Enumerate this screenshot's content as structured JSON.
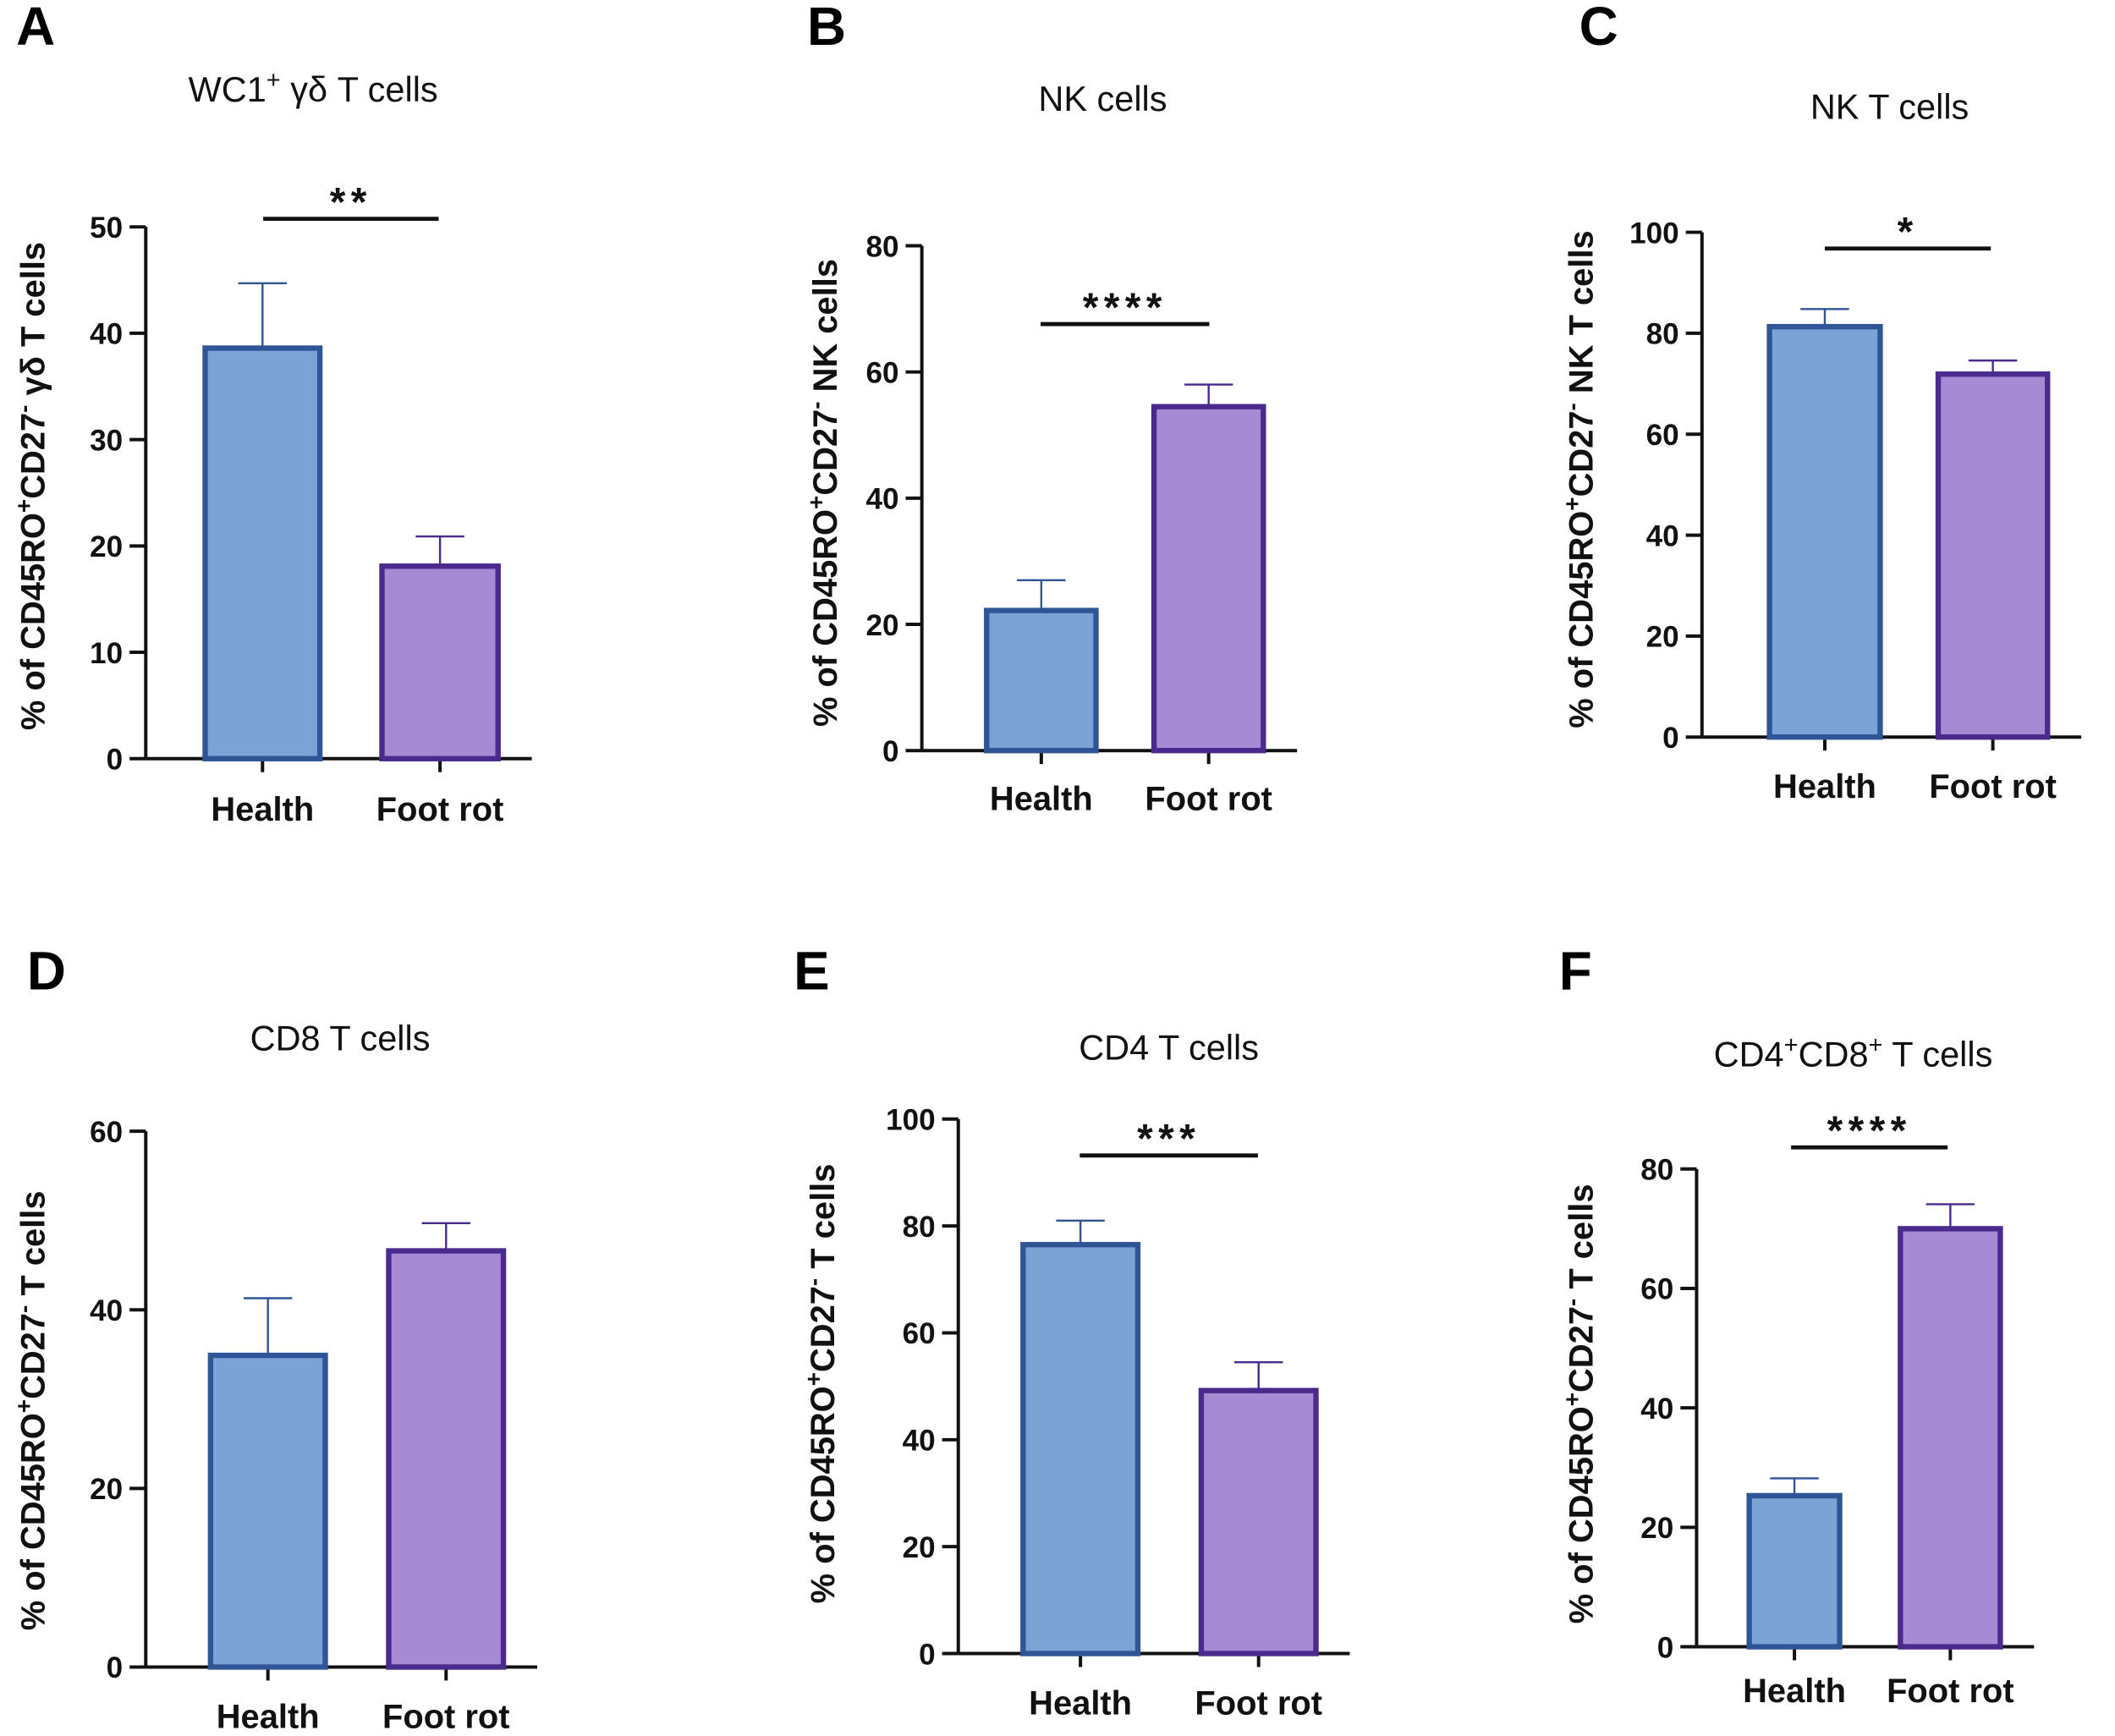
{
  "colors": {
    "health_fill": "#7ba3d6",
    "health_stroke": "#2f5597",
    "footrot_fill": "#a68bd4",
    "footrot_stroke": "#4a2a8c",
    "axis": "#111111"
  },
  "chart_data": [
    {
      "panel": "A",
      "type": "bar",
      "title": [
        {
          "t": "WC1"
        },
        {
          "t": "+",
          "sup": true
        },
        {
          "t": " γδ T cells"
        }
      ],
      "ylabel": [
        {
          "t": "% of CD45RO"
        },
        {
          "t": "+",
          "sup": true
        },
        {
          "t": "CD27"
        },
        {
          "t": "-",
          "sup": true
        },
        {
          "t": " γδ T cells"
        }
      ],
      "categories": [
        "Health",
        "Foot rot"
      ],
      "values": [
        38.6,
        18.1
      ],
      "error_upper": [
        44.7,
        20.9
      ],
      "ylim": [
        0,
        50
      ],
      "yticks": [
        0,
        10,
        20,
        30,
        40,
        50
      ],
      "significance": "**"
    },
    {
      "panel": "B",
      "type": "bar",
      "title": [
        {
          "t": "NK cells"
        }
      ],
      "ylabel": [
        {
          "t": "% of CD45RO"
        },
        {
          "t": "+",
          "sup": true
        },
        {
          "t": "CD27"
        },
        {
          "t": "-",
          "sup": true
        },
        {
          "t": " NK cells"
        }
      ],
      "categories": [
        "Health",
        "Foot rot"
      ],
      "values": [
        22.2,
        54.5
      ],
      "error_upper": [
        27.0,
        58.0
      ],
      "ylim": [
        0,
        80
      ],
      "yticks": [
        0,
        20,
        40,
        60,
        80
      ],
      "significance": "****"
    },
    {
      "panel": "C",
      "type": "bar",
      "title": [
        {
          "t": "NK T cells"
        }
      ],
      "ylabel": [
        {
          "t": "% of  CD45RO"
        },
        {
          "t": "+",
          "sup": true
        },
        {
          "t": "CD27"
        },
        {
          "t": "-",
          "sup": true
        },
        {
          "t": " NK T cells"
        }
      ],
      "categories": [
        "Health",
        "Foot rot"
      ],
      "values": [
        81.3,
        71.9
      ],
      "error_upper": [
        84.8,
        74.6
      ],
      "ylim": [
        0,
        100
      ],
      "yticks": [
        0,
        20,
        40,
        60,
        80,
        100
      ],
      "significance": "*"
    },
    {
      "panel": "D",
      "type": "bar",
      "title": [
        {
          "t": "CD8 T cells"
        }
      ],
      "ylabel": [
        {
          "t": "% of CD45RO"
        },
        {
          "t": "+",
          "sup": true
        },
        {
          "t": "CD27"
        },
        {
          "t": "-",
          "sup": true
        },
        {
          "t": " T cells"
        }
      ],
      "categories": [
        "Health",
        "Foot rot"
      ],
      "values": [
        34.9,
        46.6
      ],
      "error_upper": [
        41.3,
        49.7
      ],
      "ylim": [
        0,
        60
      ],
      "yticks": [
        0,
        20,
        40,
        60
      ],
      "significance": ""
    },
    {
      "panel": "E",
      "type": "bar",
      "title": [
        {
          "t": "CD4 T cells"
        }
      ],
      "ylabel": [
        {
          "t": "% of CD45RO"
        },
        {
          "t": "+",
          "sup": true
        },
        {
          "t": "CD27"
        },
        {
          "t": "-",
          "sup": true
        },
        {
          "t": " T cells"
        }
      ],
      "categories": [
        "Health",
        "Foot rot"
      ],
      "values": [
        76.5,
        49.2
      ],
      "error_upper": [
        81.0,
        54.5
      ],
      "ylim": [
        0,
        100
      ],
      "yticks": [
        0,
        20,
        40,
        60,
        80,
        100
      ],
      "significance": "***"
    },
    {
      "panel": "F",
      "type": "bar",
      "title": [
        {
          "t": "CD4"
        },
        {
          "t": "+",
          "sup": true
        },
        {
          "t": "CD8"
        },
        {
          "t": "+",
          "sup": true
        },
        {
          "t": " T cells"
        }
      ],
      "ylabel": [
        {
          "t": "% of CD45RO"
        },
        {
          "t": "+",
          "sup": true
        },
        {
          "t": "CD27"
        },
        {
          "t": "-",
          "sup": true
        },
        {
          "t": " T cells"
        }
      ],
      "categories": [
        "Health",
        "Foot rot"
      ],
      "values": [
        25.3,
        70.0
      ],
      "error_upper": [
        28.2,
        74.1
      ],
      "ylim": [
        0,
        80
      ],
      "yticks": [
        0,
        20,
        40,
        60,
        80
      ],
      "significance": "****"
    }
  ]
}
